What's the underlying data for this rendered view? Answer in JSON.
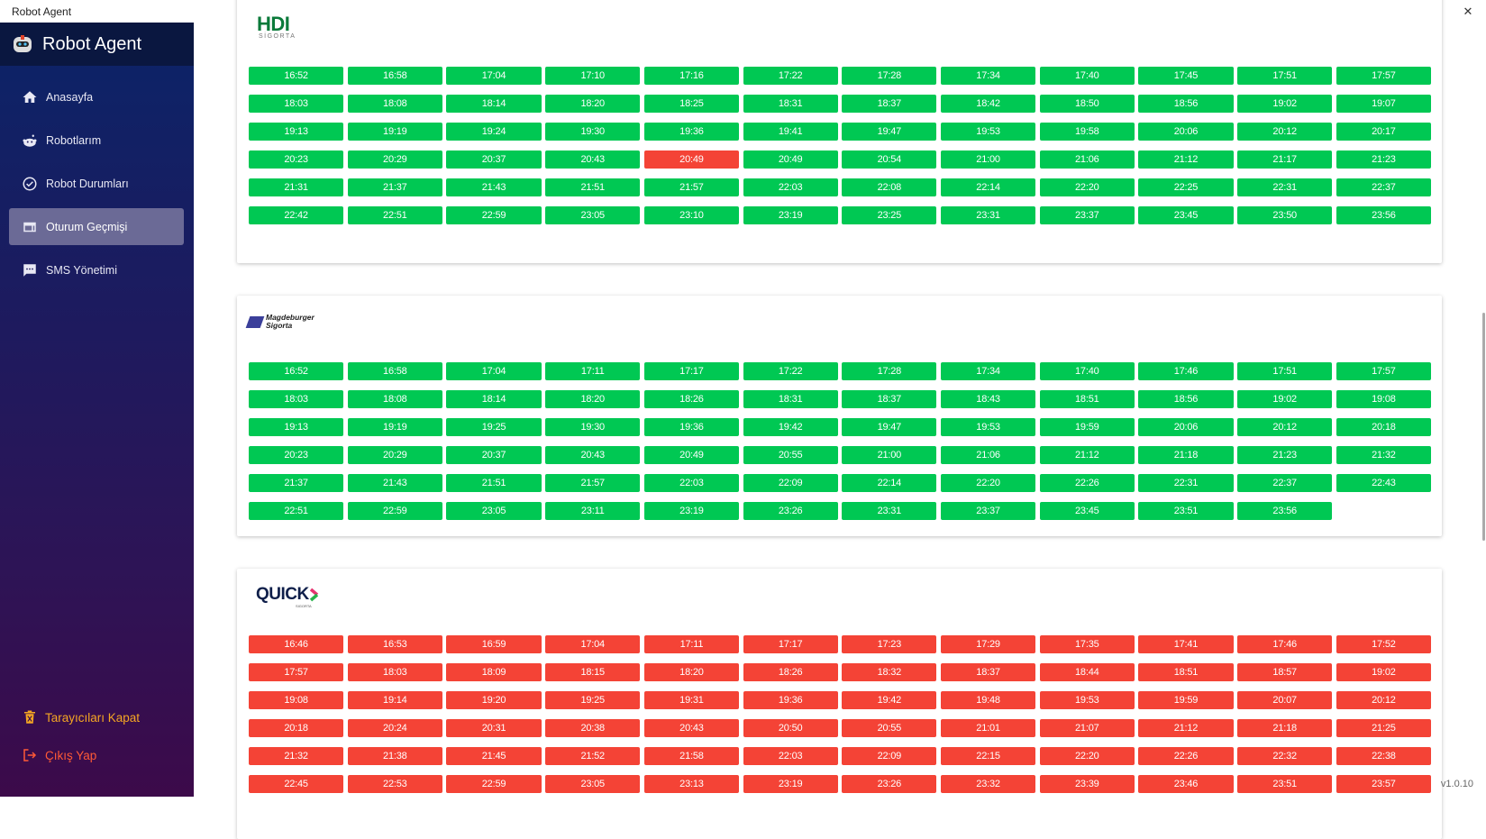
{
  "window": {
    "title": "Robot Agent",
    "minimize": "–",
    "restore": "❐",
    "close": "✕"
  },
  "sidebar": {
    "app_name": "Robot Agent",
    "items": [
      {
        "label": "Anasayfa",
        "icon": "home-icon"
      },
      {
        "label": "Robotlarım",
        "icon": "robot-icon"
      },
      {
        "label": "Robot Durumları",
        "icon": "check-circle-icon"
      },
      {
        "label": "Oturum Geçmişi",
        "icon": "browser-window-icon",
        "active": true
      },
      {
        "label": "SMS Yönetimi",
        "icon": "message-icon"
      }
    ],
    "close_browsers": "Tarayıcıları Kapat",
    "logout": "Çıkış Yap"
  },
  "colors": {
    "success": "#00c853",
    "failed": "#f44336",
    "close_browsers": "#f5a623",
    "logout": "#ff5a36"
  },
  "version": "v1.0.10",
  "cards": [
    {
      "logo": {
        "main": "HDI",
        "sub": "SİGORTA"
      },
      "times": [
        "16:52",
        "16:58",
        "17:04",
        "17:10",
        "17:16",
        "17:22",
        "17:28",
        "17:34",
        "17:40",
        "17:45",
        "17:51",
        "17:57",
        "18:03",
        "18:08",
        "18:14",
        "18:20",
        "18:25",
        "18:31",
        "18:37",
        "18:42",
        "18:50",
        "18:56",
        "19:02",
        "19:07",
        "19:13",
        "19:19",
        "19:24",
        "19:30",
        "19:36",
        "19:41",
        "19:47",
        "19:53",
        "19:58",
        "20:06",
        "20:12",
        "20:17",
        "20:23",
        "20:29",
        "20:37",
        "20:43",
        "20:49",
        "20:49",
        "20:54",
        "21:00",
        "21:06",
        "21:12",
        "21:17",
        "21:23",
        "21:31",
        "21:37",
        "21:43",
        "21:51",
        "21:57",
        "22:03",
        "22:08",
        "22:14",
        "22:20",
        "22:25",
        "22:31",
        "22:37",
        "22:42",
        "22:51",
        "22:59",
        "23:05",
        "23:10",
        "23:19",
        "23:25",
        "23:31",
        "23:37",
        "23:45",
        "23:50",
        "23:56"
      ],
      "default_status": "success",
      "failed_slots": [
        40
      ]
    },
    {
      "logo": {
        "main": "Magdeburger",
        "sub": "Sigorta"
      },
      "times": [
        "16:52",
        "16:58",
        "17:04",
        "17:11",
        "17:17",
        "17:22",
        "17:28",
        "17:34",
        "17:40",
        "17:46",
        "17:51",
        "17:57",
        "18:03",
        "18:08",
        "18:14",
        "18:20",
        "18:26",
        "18:31",
        "18:37",
        "18:43",
        "18:51",
        "18:56",
        "19:02",
        "19:08",
        "19:13",
        "19:19",
        "19:25",
        "19:30",
        "19:36",
        "19:42",
        "19:47",
        "19:53",
        "19:59",
        "20:06",
        "20:12",
        "20:18",
        "20:23",
        "20:29",
        "20:37",
        "20:43",
        "20:49",
        "20:55",
        "21:00",
        "21:06",
        "21:12",
        "21:18",
        "21:23",
        "21:32",
        "21:37",
        "21:43",
        "21:51",
        "21:57",
        "22:03",
        "22:09",
        "22:14",
        "22:20",
        "22:26",
        "22:31",
        "22:37",
        "22:43",
        "22:51",
        "22:59",
        "23:05",
        "23:11",
        "23:19",
        "23:26",
        "23:31",
        "23:37",
        "23:45",
        "23:51",
        "23:56"
      ],
      "default_status": "success",
      "failed_slots": []
    },
    {
      "logo": {
        "main": "QUICK",
        "sub": "SIGORTA"
      },
      "times": [
        "16:46",
        "16:53",
        "16:59",
        "17:04",
        "17:11",
        "17:17",
        "17:23",
        "17:29",
        "17:35",
        "17:41",
        "17:46",
        "17:52",
        "17:57",
        "18:03",
        "18:09",
        "18:15",
        "18:20",
        "18:26",
        "18:32",
        "18:37",
        "18:44",
        "18:51",
        "18:57",
        "19:02",
        "19:08",
        "19:14",
        "19:20",
        "19:25",
        "19:31",
        "19:36",
        "19:42",
        "19:48",
        "19:53",
        "19:59",
        "20:07",
        "20:12",
        "20:18",
        "20:24",
        "20:31",
        "20:38",
        "20:43",
        "20:50",
        "20:55",
        "21:01",
        "21:07",
        "21:12",
        "21:18",
        "21:25",
        "21:32",
        "21:38",
        "21:45",
        "21:52",
        "21:58",
        "22:03",
        "22:09",
        "22:15",
        "22:20",
        "22:26",
        "22:32",
        "22:38",
        "22:45",
        "22:53",
        "22:59",
        "23:05",
        "23:13",
        "23:19",
        "23:26",
        "23:32",
        "23:39",
        "23:46",
        "23:51",
        "23:57"
      ],
      "default_status": "failed",
      "failed_slots": []
    }
  ]
}
